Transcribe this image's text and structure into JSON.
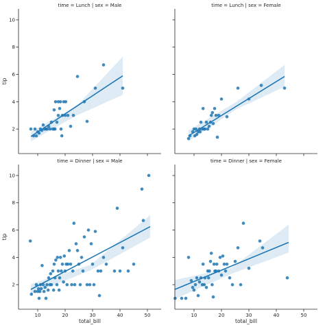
{
  "chart_data": {
    "type": "scatter",
    "xlabel": "total_bill",
    "ylabel": "tip",
    "xlim": [
      3,
      55
    ],
    "ylim": [
      0.2,
      10.8
    ],
    "x_ticks": [
      10,
      20,
      30,
      40,
      50
    ],
    "y_ticks": [
      2,
      4,
      6,
      8,
      10
    ],
    "grid": false,
    "regression": {
      "ci_level": 95
    },
    "panels": [
      {
        "title": "time = Lunch | sex = Male",
        "row": 0,
        "col": 0,
        "fit": {
          "x0": 7.5,
          "y0": 1.45,
          "x1": 41,
          "y1": 5.9
        },
        "ci": {
          "lo": [
            1.1,
            3.0,
            4.5
          ],
          "hi": [
            1.8,
            3.7,
            7.3
          ]
        },
        "points": [
          [
            7.5,
            2.0
          ],
          [
            8.5,
            1.5
          ],
          [
            9.0,
            2.0
          ],
          [
            9.5,
            1.5
          ],
          [
            10.0,
            1.8
          ],
          [
            10.5,
            1.7
          ],
          [
            11.0,
            2.0
          ],
          [
            11.5,
            1.9
          ],
          [
            12.0,
            2.3
          ],
          [
            12.5,
            2.0
          ],
          [
            13.0,
            2.0
          ],
          [
            13.5,
            2.0
          ],
          [
            14.0,
            2.2
          ],
          [
            14.5,
            2.0
          ],
          [
            15.0,
            2.5
          ],
          [
            15.5,
            2.0
          ],
          [
            16.0,
            2.0
          ],
          [
            16.0,
            3.4
          ],
          [
            16.3,
            2.0
          ],
          [
            16.5,
            4.0
          ],
          [
            17.0,
            2.5
          ],
          [
            17.5,
            3.0
          ],
          [
            17.5,
            4.0
          ],
          [
            18.0,
            3.5
          ],
          [
            18.3,
            4.0
          ],
          [
            18.5,
            2.0
          ],
          [
            18.8,
            1.5
          ],
          [
            19.0,
            3.0
          ],
          [
            19.5,
            4.0
          ],
          [
            20.0,
            3.0
          ],
          [
            20.2,
            4.0
          ],
          [
            21.0,
            3.0
          ],
          [
            22.0,
            2.2
          ],
          [
            23.0,
            3.0
          ],
          [
            24.5,
            5.85
          ],
          [
            27.0,
            4.0
          ],
          [
            28.0,
            2.56
          ],
          [
            31.0,
            5.0
          ],
          [
            34.0,
            6.7
          ],
          [
            41.0,
            5.0
          ]
        ]
      },
      {
        "title": "time = Lunch | sex = Female",
        "row": 0,
        "col": 1,
        "fit": {
          "x0": 8,
          "y0": 1.5,
          "x1": 43,
          "y1": 5.85
        },
        "ci": {
          "lo": [
            1.1,
            3.45,
            5.1
          ],
          "hi": [
            1.9,
            4.0,
            6.7
          ]
        },
        "points": [
          [
            8.0,
            1.3
          ],
          [
            8.5,
            1.5
          ],
          [
            9.5,
            1.8
          ],
          [
            10.0,
            2.0
          ],
          [
            10.3,
            1.5
          ],
          [
            10.7,
            2.0
          ],
          [
            11.0,
            1.6
          ],
          [
            11.5,
            1.8
          ],
          [
            12.0,
            2.0
          ],
          [
            12.2,
            1.8
          ],
          [
            12.5,
            2.5
          ],
          [
            13.0,
            2.0
          ],
          [
            13.3,
            3.5
          ],
          [
            13.6,
            2.0
          ],
          [
            14.0,
            2.0
          ],
          [
            14.5,
            2.5
          ],
          [
            15.0,
            2.0
          ],
          [
            15.5,
            2.2
          ],
          [
            16.0,
            2.5
          ],
          [
            16.3,
            3.0
          ],
          [
            16.7,
            3.2
          ],
          [
            17.0,
            2.4
          ],
          [
            17.5,
            3.5
          ],
          [
            18.0,
            3.0
          ],
          [
            18.5,
            1.4
          ],
          [
            19.0,
            3.0
          ],
          [
            20.0,
            4.2
          ],
          [
            22.0,
            2.9
          ],
          [
            26.0,
            5.0
          ],
          [
            30.0,
            4.2
          ],
          [
            34.5,
            5.2
          ],
          [
            43.0,
            5.0
          ]
        ]
      },
      {
        "title": "time = Dinner | sex = Male",
        "row": 1,
        "col": 0,
        "fit": {
          "x0": 7.5,
          "y0": 1.65,
          "x1": 51,
          "y1": 6.25
        },
        "ci": {
          "lo": [
            1.3,
            3.05,
            5.45
          ],
          "hi": [
            2.05,
            3.45,
            7.1
          ]
        },
        "points": [
          [
            7.3,
            5.2
          ],
          [
            7.7,
            1.3
          ],
          [
            9.0,
            1.5
          ],
          [
            9.5,
            2.0
          ],
          [
            10.0,
            1.5
          ],
          [
            10.3,
            1.7
          ],
          [
            10.5,
            1.0
          ],
          [
            10.8,
            1.5
          ],
          [
            11.0,
            2.0
          ],
          [
            11.3,
            1.7
          ],
          [
            11.6,
            3.4
          ],
          [
            12.0,
            2.0
          ],
          [
            12.3,
            1.5
          ],
          [
            12.7,
            1.8
          ],
          [
            13.0,
            1.0
          ],
          [
            13.4,
            2.0
          ],
          [
            13.8,
            1.6
          ],
          [
            14.0,
            2.5
          ],
          [
            14.5,
            2.0
          ],
          [
            14.7,
            2.8
          ],
          [
            15.0,
            2.0
          ],
          [
            15.5,
            3.0
          ],
          [
            15.8,
            1.6
          ],
          [
            16.0,
            3.5
          ],
          [
            16.3,
            2.5
          ],
          [
            16.6,
            3.8
          ],
          [
            17.0,
            2.0
          ],
          [
            17.2,
            4.0
          ],
          [
            17.5,
            3.0
          ],
          [
            17.8,
            1.6
          ],
          [
            18.0,
            2.5
          ],
          [
            18.3,
            4.0
          ],
          [
            18.6,
            3.0
          ],
          [
            19.0,
            3.5
          ],
          [
            19.4,
            2.2
          ],
          [
            19.7,
            4.1
          ],
          [
            20.0,
            3.0
          ],
          [
            20.4,
            3.5
          ],
          [
            20.7,
            2.0
          ],
          [
            21.0,
            3.5
          ],
          [
            21.5,
            4.5
          ],
          [
            22.0,
            3.5
          ],
          [
            22.4,
            2.0
          ],
          [
            22.8,
            3.0
          ],
          [
            23.2,
            6.5
          ],
          [
            23.5,
            2.0
          ],
          [
            24.0,
            5.0
          ],
          [
            24.5,
            4.5
          ],
          [
            25.0,
            3.5
          ],
          [
            25.5,
            2.0
          ],
          [
            26.0,
            4.0
          ],
          [
            26.5,
            3.0
          ],
          [
            27.0,
            5.5
          ],
          [
            28.0,
            2.0
          ],
          [
            28.5,
            6.0
          ],
          [
            29.0,
            2.0
          ],
          [
            29.5,
            5.0
          ],
          [
            30.0,
            3.5
          ],
          [
            30.5,
            2.0
          ],
          [
            31.0,
            5.9
          ],
          [
            32.0,
            3.0
          ],
          [
            32.5,
            1.2
          ],
          [
            33.0,
            3.0
          ],
          [
            34.0,
            4.0
          ],
          [
            35.0,
            3.5
          ],
          [
            38.0,
            3.0
          ],
          [
            39.0,
            7.6
          ],
          [
            40.0,
            3.0
          ],
          [
            41.0,
            4.7
          ],
          [
            43.0,
            3.0
          ],
          [
            45.0,
            3.5
          ],
          [
            48.0,
            9.0
          ],
          [
            48.5,
            6.7
          ],
          [
            50.5,
            10.0
          ]
        ]
      },
      {
        "title": "time = Dinner | sex = Female",
        "row": 1,
        "col": 1,
        "fit": {
          "x0": 3,
          "y0": 1.65,
          "x1": 44.5,
          "y1": 5.1
        },
        "ci": {
          "lo": [
            0.95,
            2.8,
            4.35
          ],
          "hi": [
            2.35,
            3.25,
            6.4
          ]
        },
        "points": [
          [
            3.1,
            1.0
          ],
          [
            5.5,
            1.0
          ],
          [
            7.0,
            1.0
          ],
          [
            8.0,
            4.0
          ],
          [
            9.0,
            2.3
          ],
          [
            9.5,
            1.8
          ],
          [
            10.0,
            1.6
          ],
          [
            10.5,
            2.0
          ],
          [
            11.0,
            2.5
          ],
          [
            11.5,
            1.2
          ],
          [
            12.0,
            2.2
          ],
          [
            12.5,
            2.5
          ],
          [
            13.0,
            2.0
          ],
          [
            13.3,
            3.5
          ],
          [
            13.7,
            2.0
          ],
          [
            14.0,
            2.5
          ],
          [
            14.5,
            1.8
          ],
          [
            15.0,
            3.0
          ],
          [
            15.3,
            2.5
          ],
          [
            15.6,
            3.0
          ],
          [
            16.0,
            3.7
          ],
          [
            16.3,
            4.3
          ],
          [
            16.6,
            2.0
          ],
          [
            17.0,
            1.1
          ],
          [
            17.3,
            3.5
          ],
          [
            17.6,
            3.0
          ],
          [
            18.0,
            3.0
          ],
          [
            18.3,
            3.5
          ],
          [
            19.0,
            3.0
          ],
          [
            19.5,
            4.0
          ],
          [
            20.0,
            2.7
          ],
          [
            20.5,
            4.1
          ],
          [
            21.0,
            3.5
          ],
          [
            21.5,
            3.0
          ],
          [
            22.0,
            3.5
          ],
          [
            23.0,
            2.5
          ],
          [
            24.0,
            2.0
          ],
          [
            25.0,
            3.7
          ],
          [
            26.0,
            4.7
          ],
          [
            27.0,
            2.0
          ],
          [
            28.0,
            6.5
          ],
          [
            30.0,
            3.2
          ],
          [
            34.0,
            5.2
          ],
          [
            35.0,
            4.7
          ],
          [
            44.0,
            2.5
          ]
        ]
      }
    ]
  }
}
